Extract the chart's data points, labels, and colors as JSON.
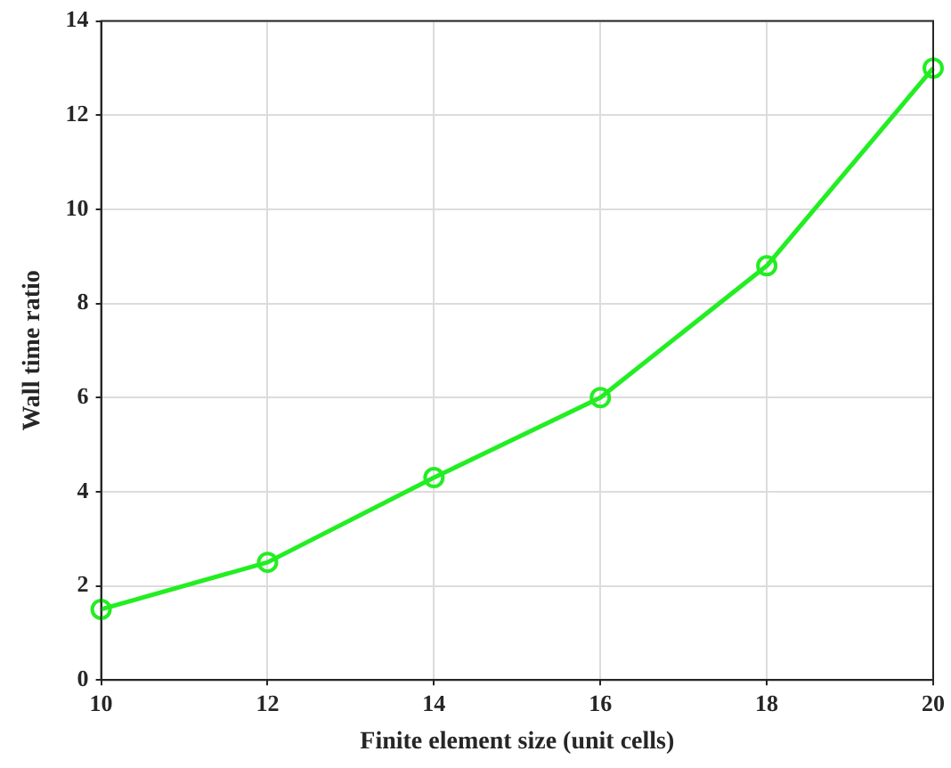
{
  "chart_data": {
    "type": "line",
    "xlabel": "Finite element size (unit cells)",
    "ylabel": "Wall time ratio",
    "x": [
      10,
      12,
      14,
      16,
      18,
      20
    ],
    "series": [
      {
        "color": "#22ee22",
        "values": [
          1.5,
          2.5,
          4.3,
          6.0,
          8.8,
          13.0
        ]
      }
    ],
    "xlim": [
      10,
      20
    ],
    "xticks": [
      10,
      12,
      14,
      16,
      18,
      20
    ],
    "ylim": [
      0,
      14
    ],
    "yticks": [
      0,
      2,
      4,
      6,
      8,
      10,
      12,
      14
    ],
    "grid": true,
    "legend": false,
    "marker": "circle",
    "line_style": "solid"
  }
}
